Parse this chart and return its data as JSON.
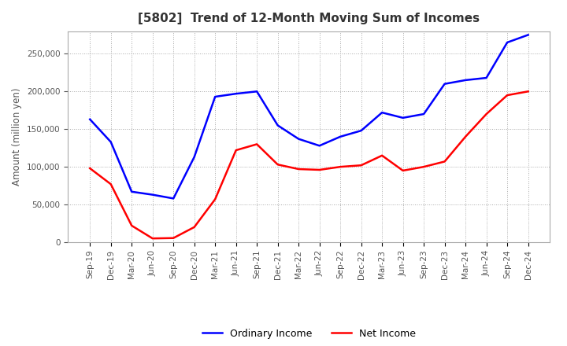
{
  "title": "[5802]  Trend of 12-Month Moving Sum of Incomes",
  "ylabel": "Amount (million yen)",
  "x_labels": [
    "Sep-19",
    "Dec-19",
    "Mar-20",
    "Jun-20",
    "Sep-20",
    "Dec-20",
    "Mar-21",
    "Jun-21",
    "Sep-21",
    "Dec-21",
    "Mar-22",
    "Jun-22",
    "Sep-22",
    "Dec-22",
    "Mar-23",
    "Jun-23",
    "Sep-23",
    "Dec-23",
    "Mar-24",
    "Jun-24",
    "Sep-24",
    "Dec-24"
  ],
  "ordinary_income": [
    163000,
    133000,
    67000,
    63000,
    58000,
    113000,
    193000,
    197000,
    200000,
    155000,
    137000,
    128000,
    140000,
    148000,
    172000,
    165000,
    170000,
    210000,
    215000,
    218000,
    265000,
    275000
  ],
  "net_income": [
    98000,
    77000,
    22000,
    5000,
    5500,
    20000,
    57000,
    122000,
    130000,
    103000,
    97000,
    96000,
    100000,
    102000,
    115000,
    95000,
    100000,
    107000,
    140000,
    170000,
    195000,
    200000
  ],
  "ordinary_income_color": "#0000FF",
  "net_income_color": "#FF0000",
  "background_color": "#FFFFFF",
  "grid_color": "#AAAAAA",
  "ylim": [
    0,
    280000
  ],
  "yticks": [
    0,
    50000,
    100000,
    150000,
    200000,
    250000
  ],
  "title_fontsize": 11,
  "tick_fontsize": 7.5,
  "ylabel_fontsize": 8.5,
  "legend_labels": [
    "Ordinary Income",
    "Net Income"
  ],
  "title_color": "#333333",
  "tick_color": "#555555"
}
